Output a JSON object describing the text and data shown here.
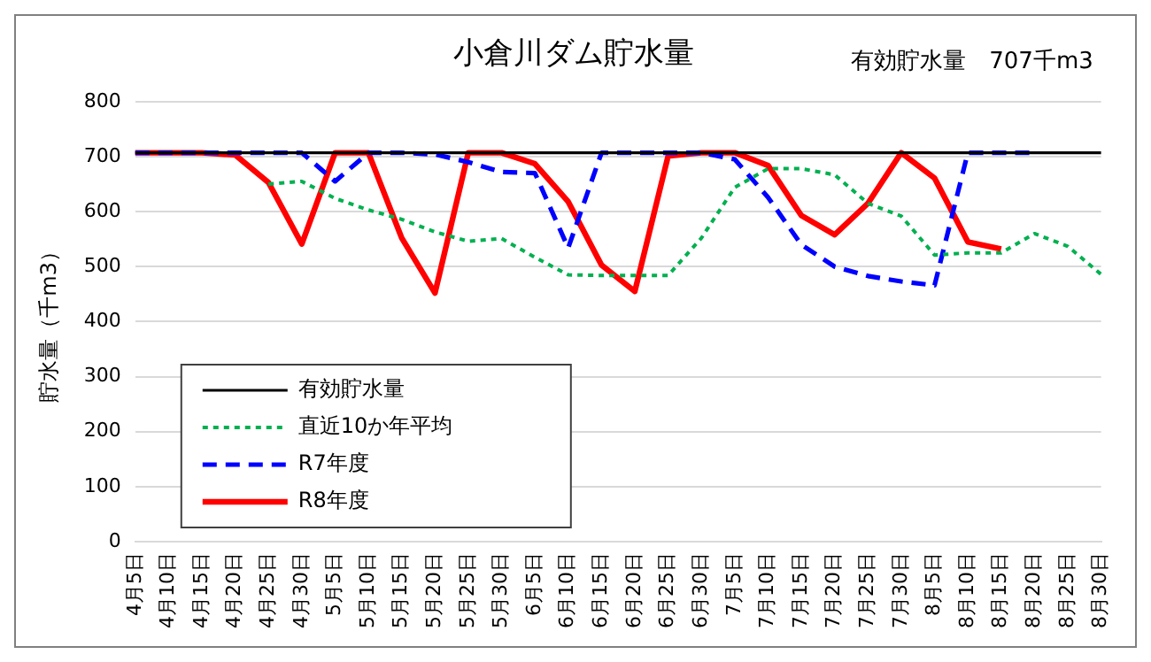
{
  "chart_data": {
    "type": "line",
    "title": "小倉川ダム貯水量",
    "ylabel": "貯水量（千m3）",
    "annotations": [
      "有効貯水量　707千m3"
    ],
    "categories": [
      "4月5日",
      "4月10日",
      "4月15日",
      "4月20日",
      "4月25日",
      "4月30日",
      "5月5日",
      "5月10日",
      "5月15日",
      "5月20日",
      "5月25日",
      "5月30日",
      "6月5日",
      "6月10日",
      "6月15日",
      "6月20日",
      "6月25日",
      "6月30日",
      "7月5日",
      "7月10日",
      "7月15日",
      "7月20日",
      "7月25日",
      "7月30日",
      "8月5日",
      "8月10日",
      "8月15日",
      "8月20日",
      "8月25日",
      "8月30日"
    ],
    "series": [
      {
        "name": "有効貯水量",
        "color": "#000000",
        "line_style": "solid",
        "values": [
          707,
          707,
          707,
          707,
          707,
          707,
          707,
          707,
          707,
          707,
          707,
          707,
          707,
          707,
          707,
          707,
          707,
          707,
          707,
          707,
          707,
          707,
          707,
          707,
          707,
          707,
          707,
          707,
          707,
          707
        ]
      },
      {
        "name": "直近10か年平均",
        "color": "#00b050",
        "line_style": "dotted",
        "values": [
          null,
          null,
          null,
          null,
          650,
          655,
          624,
          603,
          586,
          563,
          546,
          551,
          517,
          485,
          484,
          484,
          484,
          552,
          644,
          678,
          678,
          667,
          615,
          592,
          521,
          525,
          525,
          560,
          537,
          486
        ]
      },
      {
        "name": "R7年度",
        "color": "#0000ff",
        "line_style": "dashed",
        "values": [
          707,
          707,
          707,
          707,
          707,
          707,
          655,
          707,
          707,
          704,
          690,
          672,
          670,
          534,
          707,
          707,
          707,
          707,
          695,
          626,
          540,
          500,
          483,
          473,
          466,
          707,
          707,
          707,
          null,
          null
        ]
      },
      {
        "name": "R8年度",
        "color": "#ff0000",
        "line_style": "solid",
        "values": [
          707,
          707,
          707,
          703,
          653,
          541,
          707,
          707,
          552,
          452,
          707,
          707,
          687,
          618,
          503,
          455,
          701,
          707,
          707,
          684,
          593,
          558,
          615,
          707,
          661,
          545,
          532,
          null,
          null,
          null
        ]
      }
    ],
    "ylim": [
      0,
      800
    ],
    "yticks": [
      0,
      100,
      200,
      300,
      400,
      500,
      600,
      700,
      800
    ],
    "grid": "y",
    "legend": "bottom left",
    "marker": "none"
  }
}
